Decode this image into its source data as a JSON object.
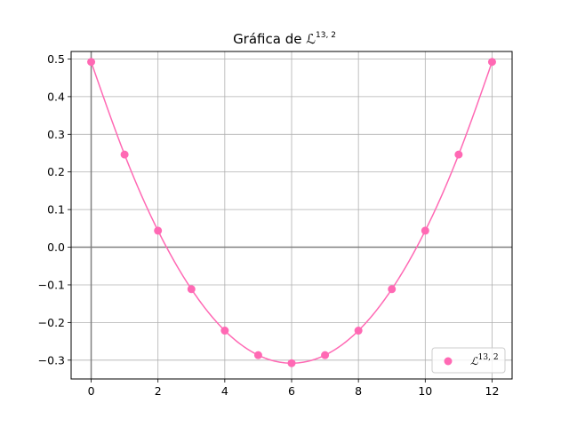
{
  "chart_data": {
    "type": "line",
    "title": "Gráfica de ℒ",
    "title_sup": "13, 2",
    "xlabel": "",
    "ylabel": "",
    "xlim": [
      -0.6,
      12.6
    ],
    "ylim": [
      -0.35,
      0.52
    ],
    "xticks": [
      0,
      2,
      4,
      6,
      8,
      10,
      12
    ],
    "xtick_labels": [
      "0",
      "2",
      "4",
      "6",
      "8",
      "10",
      "12"
    ],
    "yticks": [
      -0.3,
      -0.2,
      -0.1,
      0.0,
      0.1,
      0.2,
      0.3,
      0.4,
      0.5
    ],
    "ytick_labels": [
      "−0.3",
      "−0.2",
      "−0.1",
      "0.0",
      "0.1",
      "0.2",
      "0.3",
      "0.4",
      "0.5"
    ],
    "grid": true,
    "legend_position": "lower-right",
    "color": "#ff69b4",
    "series": [
      {
        "name": "ℒ",
        "name_sup": "13, 2",
        "x": [
          0,
          1,
          2,
          3,
          4,
          5,
          6,
          7,
          8,
          9,
          10,
          11,
          12
        ],
        "values": [
          0.4923,
          0.2462,
          0.044,
          -0.1113,
          -0.2216,
          -0.2867,
          -0.3081,
          -0.2867,
          -0.2216,
          -0.1113,
          0.044,
          0.2462,
          0.4923
        ]
      }
    ]
  }
}
